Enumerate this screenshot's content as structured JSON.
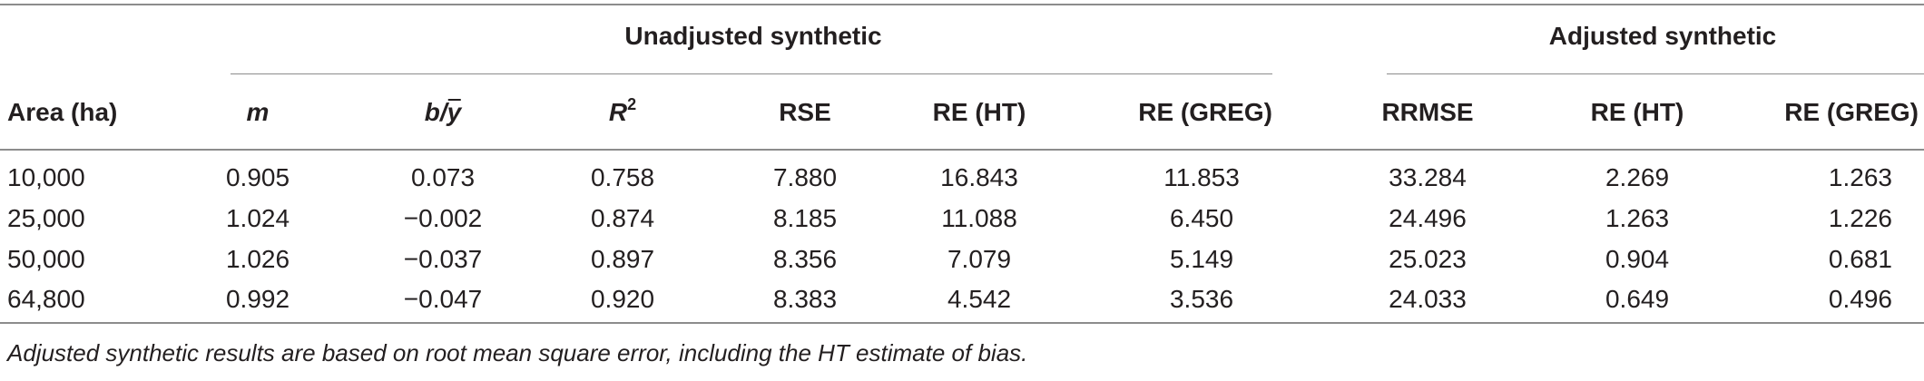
{
  "table": {
    "group_headers": {
      "unadjusted": "Unadjusted synthetic",
      "adjusted": "Adjusted synthetic"
    },
    "column_headers": {
      "area": "Area (ha)",
      "m": "m",
      "b": "b/",
      "ybar": "y",
      "r2_base": "R",
      "r2_sup": "2",
      "rse": "RSE",
      "re_ht_u": "RE (HT)",
      "re_greg_u": "RE (GREG)",
      "rrmse": "RRMSE",
      "re_ht_a": "RE (HT)",
      "re_greg_a": "RE (GREG)"
    },
    "rows": [
      {
        "area": "10,000",
        "m": "0.905",
        "b": "0.073",
        "r2": "0.758",
        "rse": "7.880",
        "re_ht_u": "16.843",
        "re_greg_u": "11.853",
        "rrmse": "33.284",
        "re_ht_a": "2.269",
        "re_greg_a": "1.263"
      },
      {
        "area": "25,000",
        "m": "1.024",
        "b": "−0.002",
        "r2": "0.874",
        "rse": "8.185",
        "re_ht_u": "11.088",
        "re_greg_u": "6.450",
        "rrmse": "24.496",
        "re_ht_a": "1.263",
        "re_greg_a": "1.226"
      },
      {
        "area": "50,000",
        "m": "1.026",
        "b": "−0.037",
        "r2": "0.897",
        "rse": "8.356",
        "re_ht_u": "7.079",
        "re_greg_u": "5.149",
        "rrmse": "25.023",
        "re_ht_a": "0.904",
        "re_greg_a": "0.681"
      },
      {
        "area": "64,800",
        "m": "0.992",
        "b": "−0.047",
        "r2": "0.920",
        "rse": "8.383",
        "re_ht_u": "4.542",
        "re_greg_u": "3.536",
        "rrmse": "24.033",
        "re_ht_a": "0.649",
        "re_greg_a": "0.496"
      }
    ],
    "note": "Adjusted synthetic results are based on root mean square error, including the HT estimate of bias."
  }
}
